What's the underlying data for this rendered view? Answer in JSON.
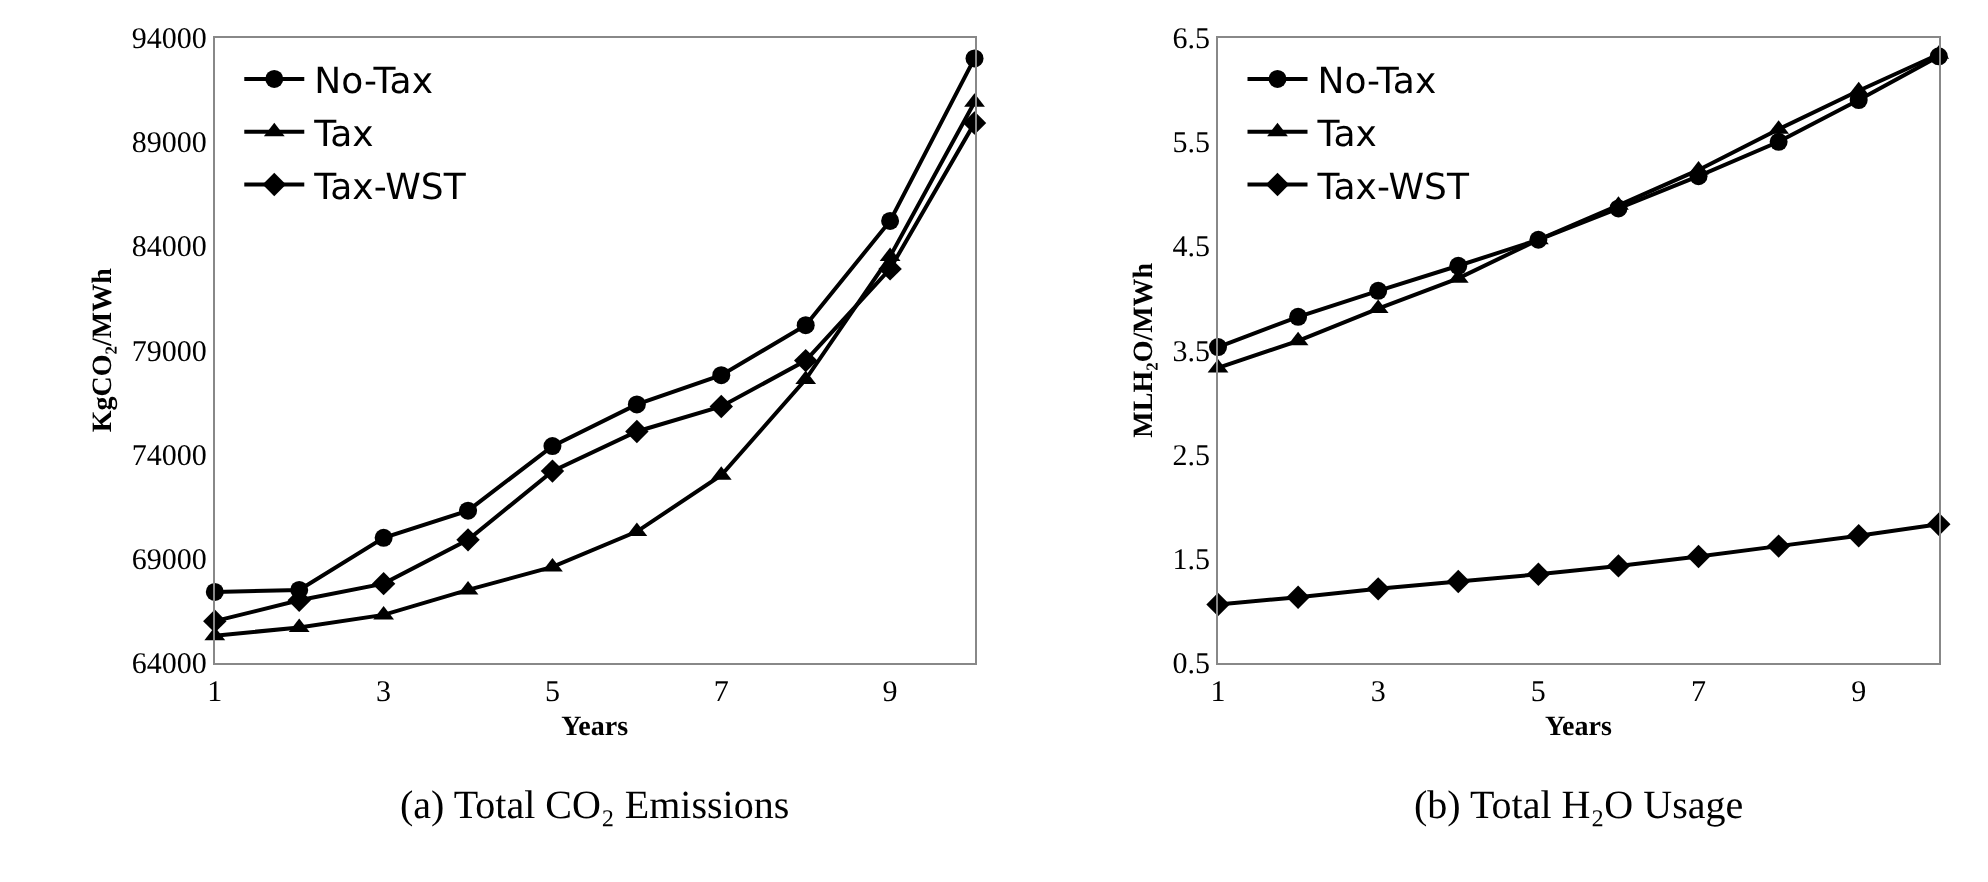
{
  "chart_data": [
    {
      "type": "line",
      "xlabel": "Years",
      "ylabel": "KgCO₂/MWh",
      "annotations": [
        "(a) Total CO₂ Emissions"
      ],
      "x": [
        1,
        2,
        3,
        4,
        5,
        6,
        7,
        8,
        9,
        10
      ],
      "series": [
        {
          "name": "No-Tax",
          "color": "#000000",
          "marker": "circle",
          "values": [
            67400,
            67500,
            70000,
            71300,
            74400,
            76400,
            77800,
            80200,
            85200,
            93000
          ]
        },
        {
          "name": "Tax",
          "color": "#000000",
          "marker": "triangle",
          "values": [
            65300,
            65700,
            66300,
            67500,
            68600,
            70300,
            73000,
            77600,
            83500,
            90900
          ]
        },
        {
          "name": "Tax-WST",
          "color": "#000000",
          "marker": "diamond",
          "values": [
            66000,
            67000,
            67800,
            69900,
            73200,
            75100,
            76300,
            78500,
            82900,
            89900
          ]
        }
      ],
      "xlim": [
        1,
        10
      ],
      "xticks": [
        1,
        3,
        5,
        7,
        9
      ],
      "ylim": [
        64000,
        94000
      ],
      "yticks": [
        64000,
        69000,
        74000,
        79000,
        84000,
        89000,
        94000
      ],
      "grid": false,
      "legend": "top left",
      "line_style": "solid"
    },
    {
      "type": "line",
      "xlabel": "Years",
      "ylabel": "MLH₂O/MWh",
      "annotations": [
        "(b) Total H₂O Usage"
      ],
      "x": [
        1,
        2,
        3,
        4,
        5,
        6,
        7,
        8,
        9,
        10
      ],
      "series": [
        {
          "name": "No-Tax",
          "color": "#000000",
          "marker": "circle",
          "values": [
            3.53,
            3.82,
            4.07,
            4.31,
            4.56,
            4.86,
            5.17,
            5.5,
            5.9,
            6.32
          ]
        },
        {
          "name": "Tax",
          "color": "#000000",
          "marker": "triangle",
          "values": [
            3.33,
            3.59,
            3.9,
            4.19,
            4.56,
            4.89,
            5.23,
            5.62,
            5.99,
            6.34
          ]
        },
        {
          "name": "Tax-WST",
          "color": "#000000",
          "marker": "diamond",
          "values": [
            1.06,
            1.13,
            1.21,
            1.28,
            1.35,
            1.43,
            1.52,
            1.62,
            1.72,
            1.83
          ]
        }
      ],
      "xlim": [
        1,
        10
      ],
      "xticks": [
        1,
        3,
        5,
        7,
        9
      ],
      "ylim": [
        0.5,
        6.5
      ],
      "yticks": [
        0.5,
        1.5,
        2.5,
        3.5,
        4.5,
        5.5,
        6.5
      ],
      "grid": false,
      "legend": "top left",
      "line_style": "solid"
    }
  ]
}
